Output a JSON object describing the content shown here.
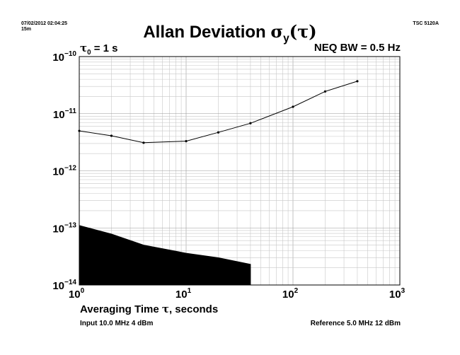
{
  "header": {
    "timestamp": "07/02/2012 02:04:25",
    "duration": "15m",
    "instrument": "TSC 5120A"
  },
  "chart_data": {
    "type": "line",
    "title": "Allan Deviation σy(τ)",
    "title_main": "Allan Deviation ",
    "title_sigma": "σ",
    "title_sub": "y",
    "title_tau": "(τ)",
    "tau0_symbol": "τ",
    "tau0_sub": "0",
    "tau0_value": " = 1 s",
    "bandwidth": "NEQ BW = 0.5 Hz",
    "xlabel": "Averaging Time τ, seconds",
    "xlabel_main": "Averaging Time ",
    "xlabel_tau": "τ",
    "xlabel_suffix": ", seconds",
    "x_scale": "log",
    "y_scale": "log",
    "xlim": [
      1,
      1000
    ],
    "ylim": [
      1e-14,
      1e-10
    ],
    "grid": true,
    "x_ticks": [
      {
        "base": "10",
        "exp": "0",
        "value": 1
      },
      {
        "base": "10",
        "exp": "1",
        "value": 10
      },
      {
        "base": "10",
        "exp": "2",
        "value": 100
      },
      {
        "base": "10",
        "exp": "3",
        "value": 1000
      }
    ],
    "y_ticks": [
      {
        "base": "10",
        "exp": "−10",
        "value": 1e-10
      },
      {
        "base": "10",
        "exp": "−11",
        "value": 1e-11
      },
      {
        "base": "10",
        "exp": "−12",
        "value": 1e-12
      },
      {
        "base": "10",
        "exp": "−13",
        "value": 1e-13
      },
      {
        "base": "10",
        "exp": "−14",
        "value": 1e-14
      }
    ],
    "series": [
      {
        "x": [
          1,
          2,
          4,
          10,
          20,
          40,
          100,
          200,
          400
        ],
        "y": [
          5e-12,
          4.1e-12,
          3.1e-12,
          3.3e-12,
          4.7e-12,
          6.8e-12,
          1.32e-11,
          2.45e-11,
          3.7e-11
        ],
        "color": "#000000"
      }
    ],
    "noise_floor": {
      "x": [
        1,
        2,
        4,
        10,
        20,
        40
      ],
      "y": [
        1.1e-13,
        7.8e-14,
        5e-14,
        3.6e-14,
        3e-14,
        2.3e-14
      ],
      "color": "#000000"
    }
  },
  "footer": {
    "input": "Input 10.0 MHz 4 dBm",
    "reference": "Reference 5.0 MHz 12 dBm"
  }
}
